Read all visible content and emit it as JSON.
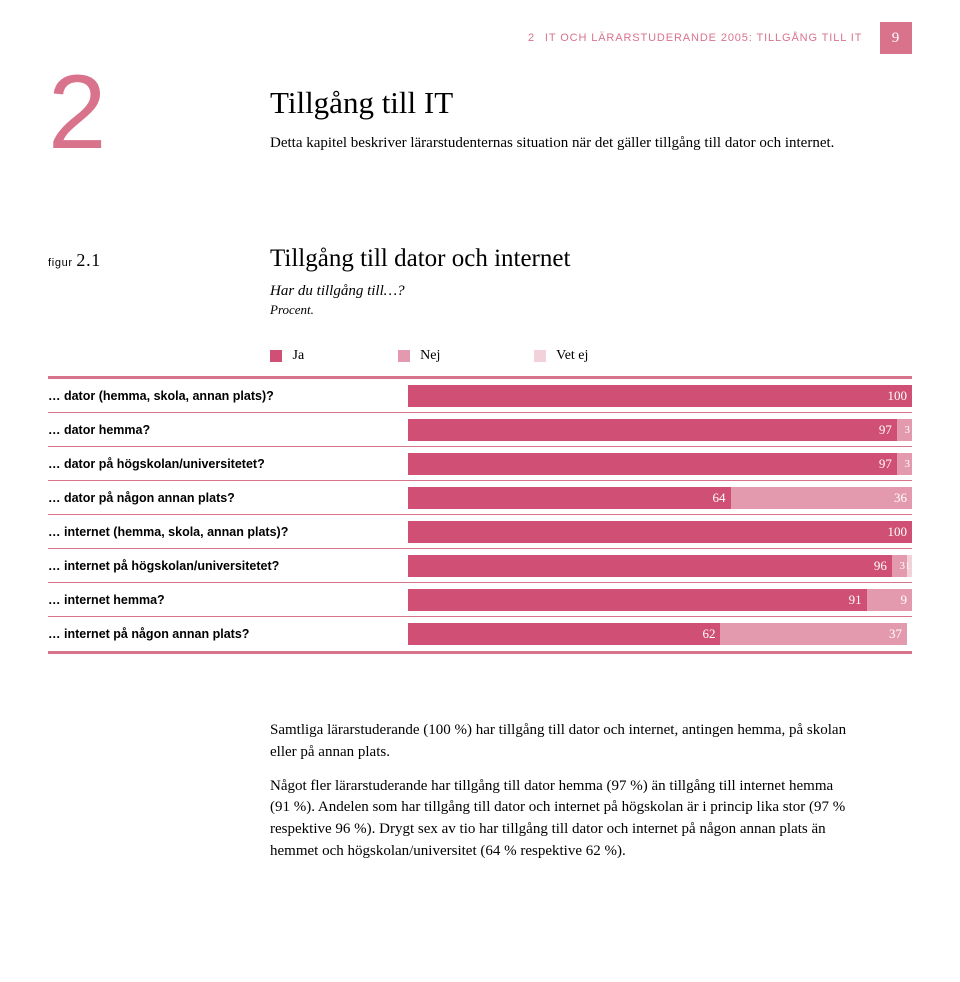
{
  "colors": {
    "accent": "#d9738c",
    "ja": "#cf5074",
    "nej": "#e49aae",
    "vetej": "#f3d1da",
    "white": "#ffffff",
    "black": "#000000"
  },
  "header": {
    "chapter_number": "2",
    "chapter_running": "IT OCH LÄRARSTUDERANDE 2005: TILLGÅNG TILL IT",
    "page_number": "9"
  },
  "section": {
    "big_number": "2",
    "title": "Tillgång till IT",
    "intro": "Detta kapitel beskriver lärarstudenternas situation när det gäller tillgång till dator och internet."
  },
  "figure": {
    "label_prefix": "figur",
    "label_number": "2.1",
    "title": "Tillgång till dator och internet",
    "question": "Har du tillgång till…?",
    "unit": "Procent.",
    "legend": {
      "ja": "Ja",
      "nej": "Nej",
      "vetej": "Vet ej"
    },
    "rows": [
      {
        "label": "… dator (hemma, skola, annan plats)?",
        "ja": 100,
        "nej": 0,
        "vetej": 0
      },
      {
        "label": "… dator hemma?",
        "ja": 97,
        "nej": 3,
        "vetej": 0
      },
      {
        "label": "… dator på högskolan/universitetet?",
        "ja": 97,
        "nej": 3,
        "vetej": 0
      },
      {
        "label": "… dator på någon annan plats?",
        "ja": 64,
        "nej": 36,
        "vetej": 0
      },
      {
        "label": "… internet (hemma, skola, annan plats)?",
        "ja": 100,
        "nej": 0,
        "vetej": 0
      },
      {
        "label": "… internet på högskolan/universitetet?",
        "ja": 96,
        "nej": 3,
        "vetej": 1
      },
      {
        "label": "… internet hemma?",
        "ja": 91,
        "nej": 9,
        "vetej": 0
      },
      {
        "label": "… internet på någon annan plats?",
        "ja": 62,
        "nej": 37,
        "vetej": 0
      }
    ]
  },
  "body": {
    "p1": "Samtliga lärarstuderande (100 %) har tillgång till dator och internet, antingen hemma, på skolan eller på annan plats.",
    "p2": "Något fler lärarstuderande har tillgång till dator hemma (97 %) än tillgång till internet hemma (91 %). Andelen som har tillgång till dator och internet på högskolan är i princip lika stor (97 % respektive 96 %). Drygt sex av tio har tillgång till dator och internet på någon annan plats än hemmet och högskolan/universitet (64 % respektive 62 %)."
  }
}
